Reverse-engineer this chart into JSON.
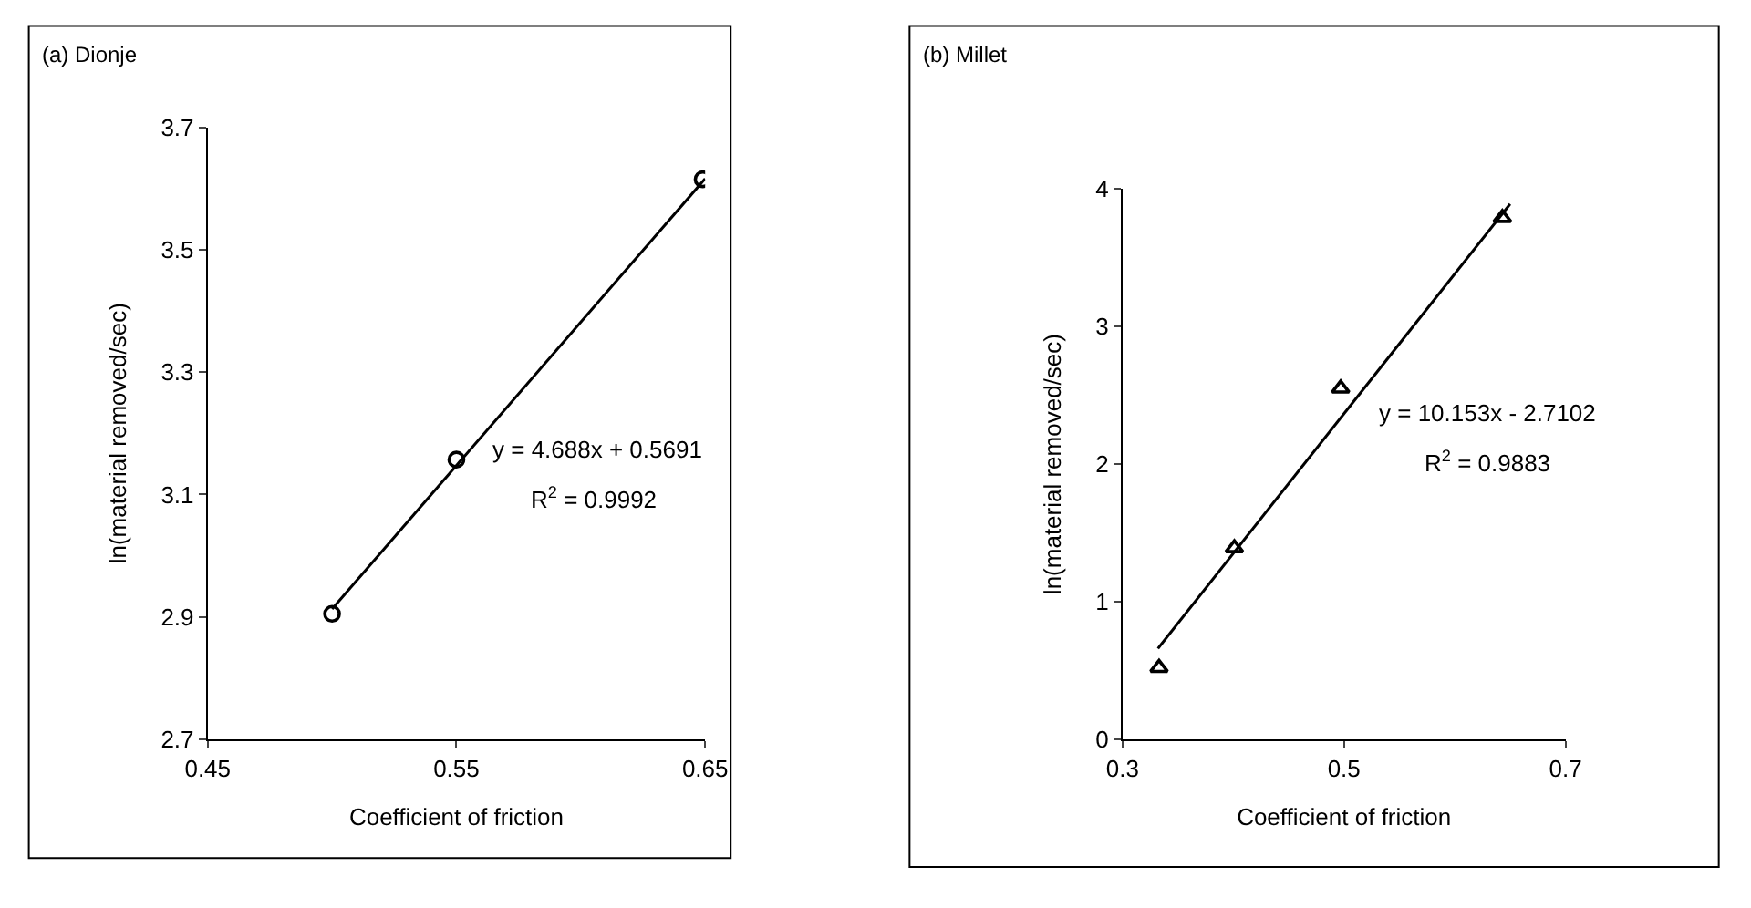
{
  "chart_data": [
    {
      "type": "scatter",
      "title": "(a) Dionje",
      "xlabel": "Coefficient of friction",
      "ylabel": "ln(material removed/sec)",
      "xlim": [
        0.45,
        0.65
      ],
      "xticks": [
        0.45,
        0.55,
        0.65
      ],
      "ylim": [
        2.7,
        3.7
      ],
      "yticks": [
        2.7,
        2.9,
        3.1,
        3.3,
        3.5,
        3.7
      ],
      "series": [
        {
          "marker": "circle",
          "color": "#000000",
          "x": [
            0.5,
            0.55,
            0.649
          ],
          "values": [
            2.905,
            3.157,
            3.615
          ]
        },
        {
          "type": "line",
          "marker": "none",
          "color": "#000000",
          "x": [
            0.5,
            0.65
          ],
          "values": [
            2.913,
            3.616
          ]
        }
      ],
      "annotations": [
        "y = 4.688x + 0.5691",
        "R$^{2}$ = 0.9992"
      ]
    },
    {
      "type": "scatter",
      "title": "(b) Millet",
      "xlabel": "Coefficient of friction",
      "ylabel": "ln(material removed/sec)",
      "xlim": [
        0.3,
        0.7
      ],
      "xticks": [
        0.3,
        0.5,
        0.7
      ],
      "ylim": [
        0,
        4
      ],
      "yticks": [
        0,
        1,
        2,
        3,
        4
      ],
      "series": [
        {
          "marker": "triangle",
          "color": "#000000",
          "x": [
            0.333,
            0.401,
            0.497,
            0.643
          ],
          "values": [
            0.52,
            1.39,
            2.55,
            3.79
          ]
        },
        {
          "type": "line",
          "marker": "none",
          "color": "#000000",
          "x": [
            0.332,
            0.65
          ],
          "values": [
            0.66,
            3.89
          ]
        }
      ],
      "annotations": [
        "y = 10.153x - 2.7102",
        "R$^{2}$ = 0.9883"
      ]
    }
  ]
}
